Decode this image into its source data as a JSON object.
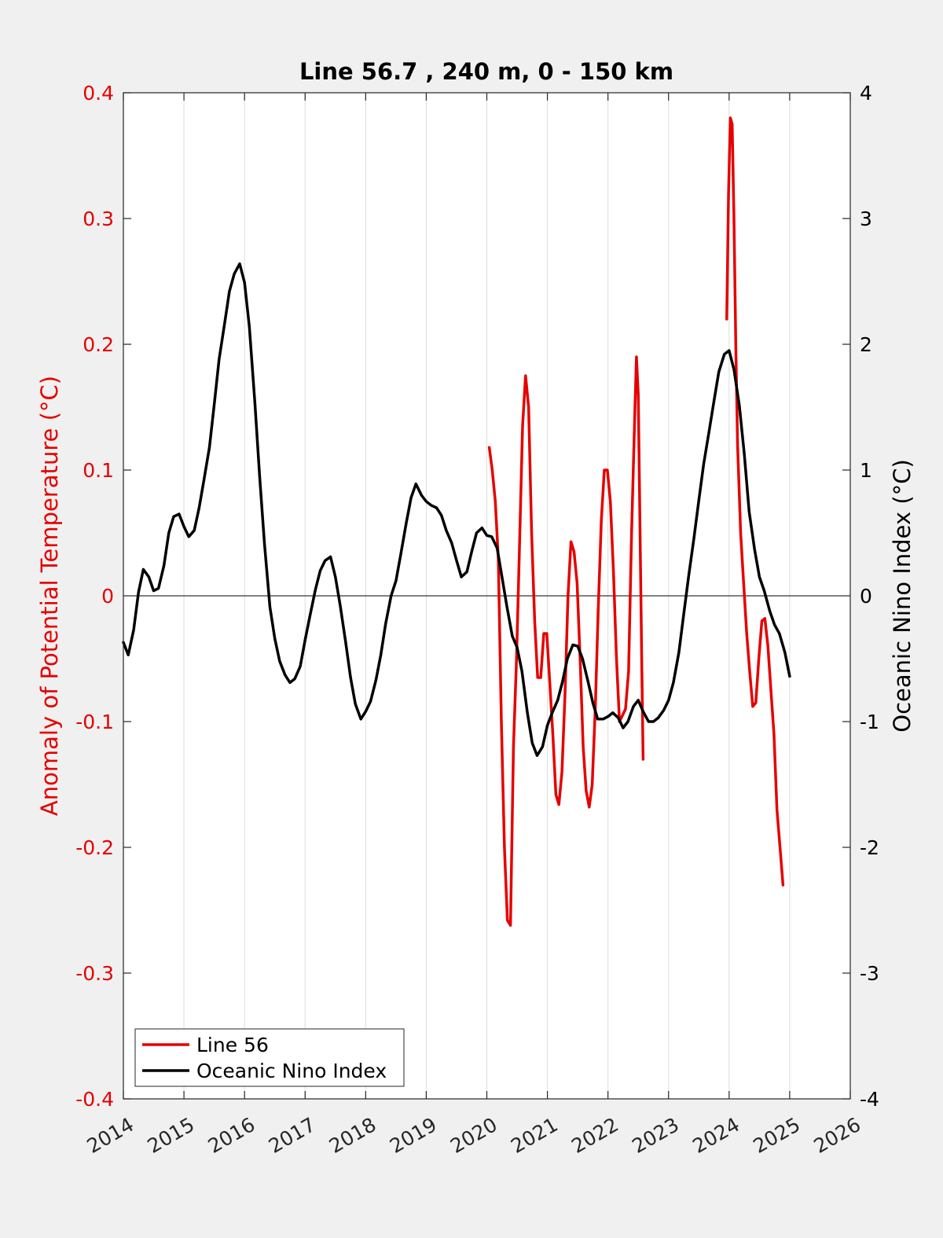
{
  "chart_data": {
    "type": "line",
    "title": "Line 56.7 , 240 m, 0 - 150 km",
    "ylabel_left": "Anomaly of Potential Temperature (°C)",
    "ylabel_right": "Oceanic Nino Index (°C)",
    "xlim": [
      2014,
      2026
    ],
    "ylim_left": [
      -0.4,
      0.4
    ],
    "ylim_right": [
      -4,
      4
    ],
    "grid": "vertical",
    "legend_position": "bottom-left",
    "colors": {
      "line56": "#e60000",
      "oni": "#000000"
    },
    "x_ticks": [
      "2014",
      "2015",
      "2016",
      "2017",
      "2018",
      "2019",
      "2020",
      "2021",
      "2022",
      "2023",
      "2024",
      "2025",
      "2026"
    ],
    "y_ticks_left": [
      "-0.4",
      "-0.3",
      "-0.2",
      "-0.1",
      "0",
      "0.1",
      "0.2",
      "0.3",
      "0.4"
    ],
    "y_ticks_right": [
      "-4",
      "-3",
      "-2",
      "-1",
      "0",
      "1",
      "2",
      "3",
      "4"
    ],
    "series": [
      {
        "name": "Line 56",
        "axis": "left",
        "segments": [
          [
            [
              2020.04,
              0.118
            ],
            [
              2020.09,
              0.1
            ],
            [
              2020.14,
              0.075
            ],
            [
              2020.19,
              0.03
            ],
            [
              2020.24,
              -0.1
            ],
            [
              2020.29,
              -0.2
            ],
            [
              2020.34,
              -0.258
            ],
            [
              2020.39,
              -0.262
            ],
            [
              2020.44,
              -0.12
            ],
            [
              2020.49,
              -0.05
            ],
            [
              2020.54,
              0.04
            ],
            [
              2020.59,
              0.135
            ],
            [
              2020.64,
              0.175
            ],
            [
              2020.69,
              0.15
            ],
            [
              2020.74,
              0.05
            ],
            [
              2020.79,
              -0.02
            ],
            [
              2020.84,
              -0.065
            ],
            [
              2020.89,
              -0.065
            ],
            [
              2020.94,
              -0.03
            ],
            [
              2020.99,
              -0.03
            ],
            [
              2021.04,
              -0.07
            ],
            [
              2021.09,
              -0.11
            ],
            [
              2021.14,
              -0.158
            ],
            [
              2021.19,
              -0.166
            ],
            [
              2021.24,
              -0.14
            ],
            [
              2021.29,
              -0.08
            ],
            [
              2021.34,
              0.0
            ],
            [
              2021.39,
              0.043
            ],
            [
              2021.44,
              0.035
            ],
            [
              2021.49,
              0.01
            ],
            [
              2021.54,
              -0.05
            ],
            [
              2021.59,
              -0.12
            ],
            [
              2021.64,
              -0.155
            ],
            [
              2021.69,
              -0.168
            ],
            [
              2021.74,
              -0.15
            ],
            [
              2021.79,
              -0.09
            ],
            [
              2021.84,
              -0.01
            ],
            [
              2021.89,
              0.06
            ],
            [
              2021.94,
              0.1
            ],
            [
              2021.99,
              0.1
            ],
            [
              2022.04,
              0.075
            ],
            [
              2022.09,
              0.02
            ],
            [
              2022.14,
              -0.05
            ],
            [
              2022.19,
              -0.1
            ],
            [
              2022.24,
              -0.095
            ],
            [
              2022.29,
              -0.09
            ],
            [
              2022.34,
              -0.06
            ],
            [
              2022.39,
              0.05
            ],
            [
              2022.44,
              0.14
            ],
            [
              2022.47,
              0.19
            ],
            [
              2022.5,
              0.16
            ],
            [
              2022.53,
              0.05
            ],
            [
              2022.56,
              -0.06
            ],
            [
              2022.58,
              -0.13
            ]
          ],
          [
            [
              2023.96,
              0.22
            ],
            [
              2023.99,
              0.32
            ],
            [
              2024.02,
              0.38
            ],
            [
              2024.05,
              0.375
            ],
            [
              2024.08,
              0.3
            ],
            [
              2024.11,
              0.2
            ],
            [
              2024.14,
              0.12
            ],
            [
              2024.19,
              0.05
            ],
            [
              2024.24,
              0.01
            ],
            [
              2024.29,
              -0.03
            ],
            [
              2024.34,
              -0.06
            ],
            [
              2024.39,
              -0.088
            ],
            [
              2024.44,
              -0.085
            ],
            [
              2024.49,
              -0.05
            ],
            [
              2024.54,
              -0.02
            ],
            [
              2024.59,
              -0.018
            ],
            [
              2024.64,
              -0.04
            ],
            [
              2024.69,
              -0.075
            ],
            [
              2024.74,
              -0.11
            ],
            [
              2024.79,
              -0.17
            ],
            [
              2024.84,
              -0.2
            ],
            [
              2024.89,
              -0.23
            ]
          ]
        ]
      },
      {
        "name": "Oceanic Nino Index",
        "axis": "right",
        "points": [
          [
            2014.0,
            -0.37
          ],
          [
            2014.08,
            -0.47
          ],
          [
            2014.17,
            -0.27
          ],
          [
            2014.25,
            0.03
          ],
          [
            2014.33,
            0.21
          ],
          [
            2014.42,
            0.15
          ],
          [
            2014.5,
            0.04
          ],
          [
            2014.58,
            0.06
          ],
          [
            2014.67,
            0.24
          ],
          [
            2014.75,
            0.5
          ],
          [
            2014.83,
            0.63
          ],
          [
            2014.92,
            0.65
          ],
          [
            2015.0,
            0.55
          ],
          [
            2015.08,
            0.47
          ],
          [
            2015.17,
            0.52
          ],
          [
            2015.25,
            0.7
          ],
          [
            2015.33,
            0.92
          ],
          [
            2015.42,
            1.18
          ],
          [
            2015.5,
            1.52
          ],
          [
            2015.58,
            1.88
          ],
          [
            2015.67,
            2.16
          ],
          [
            2015.75,
            2.42
          ],
          [
            2015.83,
            2.56
          ],
          [
            2015.92,
            2.64
          ],
          [
            2016.0,
            2.49
          ],
          [
            2016.08,
            2.14
          ],
          [
            2016.17,
            1.54
          ],
          [
            2016.25,
            0.95
          ],
          [
            2016.33,
            0.41
          ],
          [
            2016.42,
            -0.09
          ],
          [
            2016.5,
            -0.34
          ],
          [
            2016.58,
            -0.52
          ],
          [
            2016.67,
            -0.63
          ],
          [
            2016.75,
            -0.69
          ],
          [
            2016.83,
            -0.66
          ],
          [
            2016.92,
            -0.56
          ],
          [
            2017.0,
            -0.35
          ],
          [
            2017.08,
            -0.16
          ],
          [
            2017.17,
            0.05
          ],
          [
            2017.25,
            0.2
          ],
          [
            2017.33,
            0.28
          ],
          [
            2017.42,
            0.31
          ],
          [
            2017.5,
            0.15
          ],
          [
            2017.58,
            -0.08
          ],
          [
            2017.67,
            -0.37
          ],
          [
            2017.75,
            -0.65
          ],
          [
            2017.83,
            -0.86
          ],
          [
            2017.92,
            -0.98
          ],
          [
            2018.0,
            -0.92
          ],
          [
            2018.08,
            -0.84
          ],
          [
            2018.17,
            -0.67
          ],
          [
            2018.25,
            -0.47
          ],
          [
            2018.33,
            -0.22
          ],
          [
            2018.42,
            0.0
          ],
          [
            2018.5,
            0.12
          ],
          [
            2018.58,
            0.33
          ],
          [
            2018.67,
            0.58
          ],
          [
            2018.75,
            0.78
          ],
          [
            2018.83,
            0.89
          ],
          [
            2018.92,
            0.8
          ],
          [
            2019.0,
            0.75
          ],
          [
            2019.08,
            0.72
          ],
          [
            2019.17,
            0.7
          ],
          [
            2019.25,
            0.64
          ],
          [
            2019.33,
            0.52
          ],
          [
            2019.42,
            0.42
          ],
          [
            2019.5,
            0.28
          ],
          [
            2019.58,
            0.15
          ],
          [
            2019.67,
            0.19
          ],
          [
            2019.75,
            0.35
          ],
          [
            2019.83,
            0.5
          ],
          [
            2019.92,
            0.54
          ],
          [
            2020.0,
            0.48
          ],
          [
            2020.08,
            0.47
          ],
          [
            2020.17,
            0.38
          ],
          [
            2020.25,
            0.15
          ],
          [
            2020.33,
            -0.08
          ],
          [
            2020.42,
            -0.32
          ],
          [
            2020.5,
            -0.41
          ],
          [
            2020.58,
            -0.6
          ],
          [
            2020.67,
            -0.93
          ],
          [
            2020.75,
            -1.17
          ],
          [
            2020.83,
            -1.27
          ],
          [
            2020.92,
            -1.2
          ],
          [
            2021.0,
            -1.03
          ],
          [
            2021.08,
            -0.93
          ],
          [
            2021.17,
            -0.83
          ],
          [
            2021.25,
            -0.68
          ],
          [
            2021.33,
            -0.5
          ],
          [
            2021.42,
            -0.39
          ],
          [
            2021.5,
            -0.4
          ],
          [
            2021.58,
            -0.5
          ],
          [
            2021.67,
            -0.68
          ],
          [
            2021.75,
            -0.85
          ],
          [
            2021.83,
            -0.98
          ],
          [
            2021.92,
            -0.98
          ],
          [
            2022.0,
            -0.96
          ],
          [
            2022.08,
            -0.93
          ],
          [
            2022.17,
            -0.97
          ],
          [
            2022.25,
            -1.05
          ],
          [
            2022.33,
            -1.0
          ],
          [
            2022.42,
            -0.88
          ],
          [
            2022.5,
            -0.83
          ],
          [
            2022.58,
            -0.92
          ],
          [
            2022.67,
            -1.0
          ],
          [
            2022.75,
            -1.0
          ],
          [
            2022.83,
            -0.97
          ],
          [
            2022.92,
            -0.91
          ],
          [
            2023.0,
            -0.83
          ],
          [
            2023.08,
            -0.69
          ],
          [
            2023.17,
            -0.45
          ],
          [
            2023.25,
            -0.15
          ],
          [
            2023.33,
            0.15
          ],
          [
            2023.42,
            0.46
          ],
          [
            2023.5,
            0.76
          ],
          [
            2023.58,
            1.05
          ],
          [
            2023.67,
            1.31
          ],
          [
            2023.75,
            1.55
          ],
          [
            2023.83,
            1.78
          ],
          [
            2023.92,
            1.92
          ],
          [
            2024.0,
            1.95
          ],
          [
            2024.08,
            1.8
          ],
          [
            2024.17,
            1.51
          ],
          [
            2024.25,
            1.13
          ],
          [
            2024.33,
            0.67
          ],
          [
            2024.42,
            0.37
          ],
          [
            2024.5,
            0.15
          ],
          [
            2024.58,
            0.04
          ],
          [
            2024.67,
            -0.12
          ],
          [
            2024.75,
            -0.23
          ],
          [
            2024.83,
            -0.3
          ],
          [
            2024.92,
            -0.45
          ],
          [
            2025.0,
            -0.64
          ]
        ]
      }
    ]
  }
}
